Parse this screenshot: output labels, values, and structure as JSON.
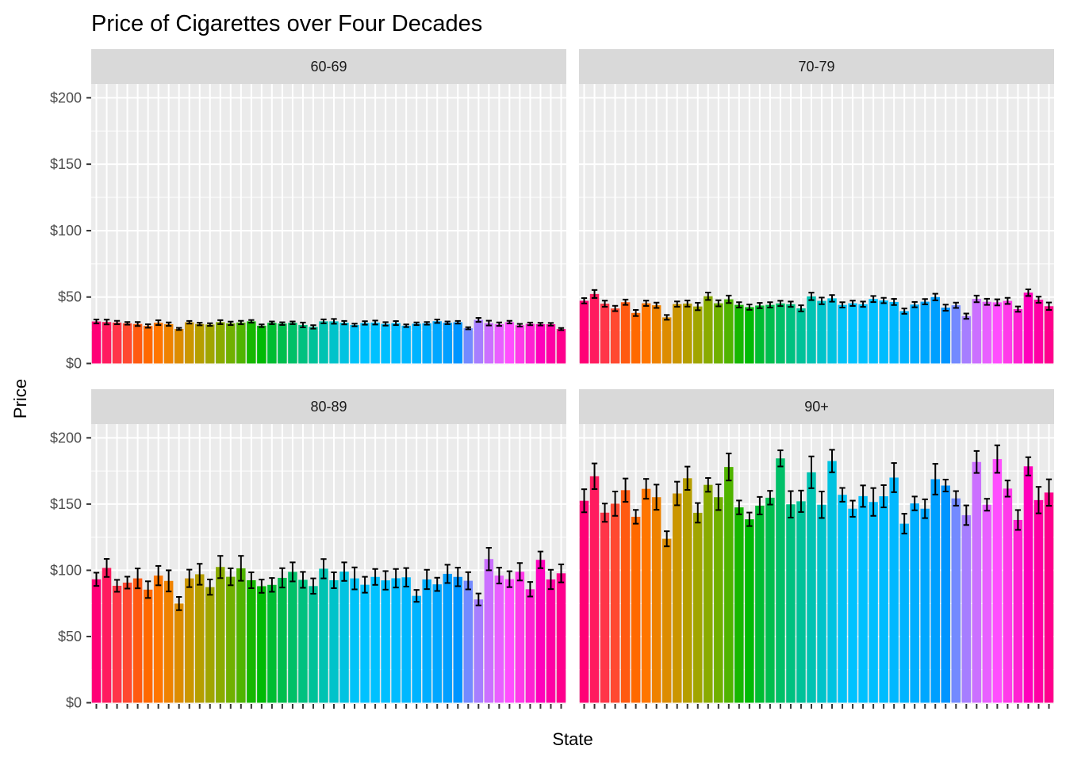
{
  "chart_data": {
    "type": "bar",
    "title": "Price of Cigarettes over Four Decades",
    "xlabel": "State",
    "ylabel": "Price",
    "ylim": [
      0,
      205
    ],
    "y_ticks": [
      {
        "value": 0,
        "label": "$0"
      },
      {
        "value": 50,
        "label": "$50"
      },
      {
        "value": 100,
        "label": "$100"
      },
      {
        "value": 150,
        "label": "$150"
      },
      {
        "value": 200,
        "label": "$200"
      }
    ],
    "x_tick_labels_shown": false,
    "error_bars": true,
    "grid": true,
    "legend": "none",
    "panels": [
      {
        "facet": "60-69",
        "values": [
          31.6,
          31.2,
          30.8,
          30.2,
          29.7,
          28.2,
          30.7,
          29.6,
          26.0,
          31.0,
          29.7,
          29.3,
          31.1,
          30.2,
          30.8,
          31.7,
          28.4,
          30.6,
          30.0,
          30.6,
          29.0,
          27.5,
          31.7,
          31.7,
          30.7,
          29.0,
          30.5,
          30.8,
          29.8,
          30.4,
          28.4,
          29.9,
          30.2,
          31.8,
          30.6,
          31.0,
          26.5,
          32.8,
          30.4,
          29.6,
          31.1,
          28.8,
          29.8,
          29.6,
          29.5,
          25.9
        ],
        "errors": [
          1.5,
          1.8,
          1.3,
          1.0,
          1.5,
          1.3,
          1.8,
          1.3,
          0.8,
          1.0,
          1.0,
          1.0,
          1.5,
          1.3,
          1.3,
          1.0,
          1.0,
          1.0,
          1.0,
          1.0,
          1.8,
          1.3,
          1.5,
          1.8,
          1.3,
          1.0,
          1.3,
          1.5,
          1.3,
          1.5,
          1.0,
          1.0,
          1.0,
          1.3,
          1.0,
          1.0,
          0.8,
          1.5,
          1.8,
          1.3,
          1.0,
          1.0,
          1.0,
          1.0,
          1.0,
          0.8
        ]
      },
      {
        "facet": "70-79",
        "values": [
          47.2,
          52.3,
          45.0,
          41.4,
          46.1,
          38.0,
          45.3,
          43.8,
          34.7,
          44.7,
          45.1,
          42.9,
          50.6,
          45.3,
          48.3,
          44.1,
          42.4,
          43.6,
          44.1,
          45.2,
          44.6,
          41.5,
          50.5,
          47.1,
          49.0,
          44.1,
          45.3,
          44.6,
          48.5,
          47.4,
          46.3,
          39.4,
          44.3,
          46.5,
          50.0,
          42.0,
          43.8,
          35.6,
          48.6,
          46.4,
          46.0,
          47.1,
          40.9,
          53.3,
          48.0,
          43.1
        ],
        "errors": [
          2.0,
          3.0,
          2.3,
          2.0,
          2.0,
          2.3,
          2.0,
          2.0,
          1.8,
          2.0,
          2.3,
          2.8,
          2.8,
          2.3,
          2.8,
          2.0,
          2.0,
          2.0,
          2.0,
          2.0,
          2.0,
          2.3,
          2.8,
          2.5,
          2.5,
          2.0,
          2.0,
          2.0,
          2.3,
          2.0,
          2.3,
          2.0,
          2.0,
          2.0,
          2.5,
          2.3,
          2.0,
          2.0,
          2.5,
          2.3,
          2.3,
          2.3,
          2.0,
          2.5,
          2.3,
          2.8
        ]
      },
      {
        "facet": "80-89",
        "values": [
          93.2,
          101.8,
          88.3,
          90.7,
          93.9,
          85.4,
          96.0,
          92.0,
          74.9,
          93.9,
          97.0,
          87.3,
          102.5,
          95.1,
          101.5,
          92.5,
          88.0,
          89.0,
          94.3,
          98.8,
          92.8,
          88.1,
          101.2,
          92.5,
          99.0,
          93.9,
          89.1,
          95.0,
          92.4,
          94.0,
          94.7,
          80.7,
          93.1,
          89.4,
          97.3,
          95.0,
          92.1,
          78.0,
          108.5,
          96.0,
          93.3,
          98.9,
          85.7,
          107.9,
          93.1,
          97.7
        ],
        "errors": [
          5.0,
          6.8,
          4.5,
          4.5,
          7.5,
          6.3,
          7.3,
          8.0,
          5.0,
          6.6,
          7.9,
          5.8,
          8.4,
          6.4,
          9.4,
          6.0,
          5.0,
          5.2,
          7.3,
          7.2,
          6.0,
          5.8,
          7.3,
          6.0,
          7.0,
          8.3,
          6.0,
          6.0,
          7.0,
          7.0,
          7.0,
          4.5,
          7.3,
          5.0,
          6.9,
          7.0,
          6.5,
          4.5,
          8.5,
          6.0,
          6.0,
          6.6,
          5.5,
          6.3,
          7.3,
          6.8
        ]
      },
      {
        "facet": "90+",
        "values": [
          152.5,
          171.0,
          143.5,
          150.3,
          160.5,
          140.4,
          161.5,
          155.2,
          123.8,
          158.0,
          169.5,
          143.4,
          164.5,
          155.2,
          178.0,
          147.5,
          138.5,
          148.8,
          154.8,
          184.5,
          149.8,
          152.1,
          174.0,
          149.5,
          182.5,
          157.0,
          146.5,
          156.0,
          151.6,
          155.9,
          170.0,
          135.2,
          150.5,
          146.5,
          168.8,
          164.0,
          154.3,
          141.6,
          181.8,
          149.5,
          184.0,
          161.7,
          138.0,
          178.5,
          153.0,
          158.7
        ],
        "errors": [
          8.7,
          9.7,
          6.9,
          9.2,
          8.8,
          5.2,
          7.5,
          9.5,
          5.7,
          8.9,
          8.8,
          7.4,
          5.2,
          9.7,
          10.2,
          5.2,
          5.1,
          6.6,
          5.2,
          6.1,
          10.0,
          8.1,
          12.0,
          10.0,
          8.5,
          5.2,
          6.1,
          8.1,
          10.5,
          8.4,
          11.0,
          7.5,
          5.2,
          7.1,
          11.6,
          4.5,
          5.5,
          7.4,
          8.3,
          4.5,
          10.4,
          6.1,
          7.5,
          6.9,
          10.0,
          10.0
        ]
      }
    ]
  }
}
